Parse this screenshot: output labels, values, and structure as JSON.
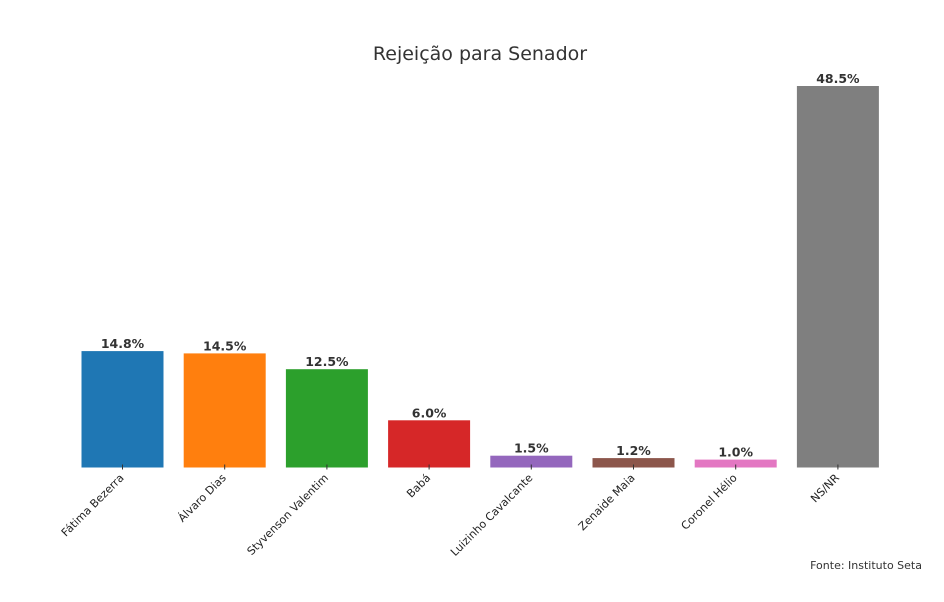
{
  "chart_data": {
    "type": "bar",
    "title": "Rejeição para Senador",
    "xlabel": "",
    "ylabel": "",
    "categories": [
      "Fátima Bezerra",
      "Álvaro Dias",
      "Styvenson Valentim",
      "Babá",
      "Luizinho Cavalcante",
      "Zenaide Maia",
      "Coronel Hélio",
      "NS/NR"
    ],
    "values": [
      14.8,
      14.5,
      12.5,
      6.0,
      1.5,
      1.2,
      1.0,
      48.5
    ],
    "value_labels": [
      "14.8%",
      "14.5%",
      "12.5%",
      "6.0%",
      "1.5%",
      "1.2%",
      "1.0%",
      "48.5%"
    ],
    "colors": [
      "#1f77b4",
      "#ff7f0e",
      "#2ca02c",
      "#d62728",
      "#9467bd",
      "#8c564b",
      "#e377c2",
      "#7f7f7f"
    ],
    "ylim": [
      0,
      48.5
    ],
    "grid": false,
    "legend": "none"
  },
  "source": "Fonte: Instituto Seta"
}
